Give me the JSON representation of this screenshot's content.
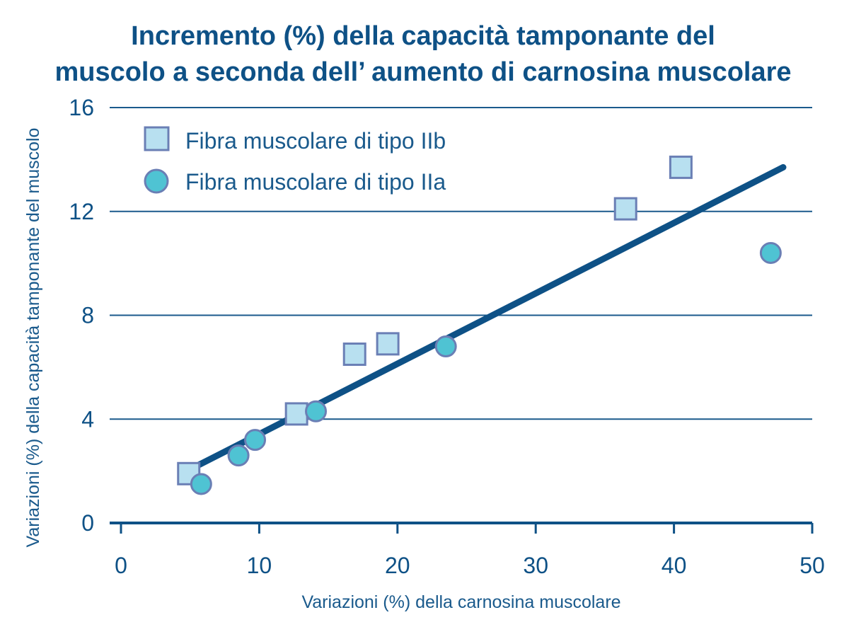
{
  "chart_data": {
    "type": "scatter",
    "title_line1": "Incremento (%) della capacità tamponante del",
    "title_line2": "muscolo a seconda dell’ aumento di carnosina muscolare",
    "xlabel": "Variazioni (%) della carnosina muscolare",
    "ylabel": "Variazioni (%) della capacità tamponante del muscolo",
    "xlim": [
      0,
      50
    ],
    "ylim": [
      0,
      16
    ],
    "x_ticks": [
      0,
      10,
      20,
      30,
      40,
      50
    ],
    "y_ticks": [
      0,
      4,
      8,
      12,
      16
    ],
    "grid": "horizontal",
    "legend_position": "top-left",
    "series": [
      {
        "name": "Fibra muscolare di tipo IIb",
        "marker": "square",
        "fill": "#b8e0f0",
        "stroke": "#6a7fb5",
        "points": [
          {
            "x": 4.9,
            "y": 1.9
          },
          {
            "x": 12.7,
            "y": 4.2
          },
          {
            "x": 16.9,
            "y": 6.5
          },
          {
            "x": 19.3,
            "y": 6.9
          },
          {
            "x": 36.5,
            "y": 12.1
          },
          {
            "x": 40.5,
            "y": 13.7
          }
        ]
      },
      {
        "name": "Fibra muscolare di tipo IIa",
        "marker": "circle",
        "fill": "#4fc3d3",
        "stroke": "#6a7fb5",
        "points": [
          {
            "x": 5.8,
            "y": 1.5
          },
          {
            "x": 8.5,
            "y": 2.6
          },
          {
            "x": 9.7,
            "y": 3.2
          },
          {
            "x": 14.1,
            "y": 4.3
          },
          {
            "x": 23.5,
            "y": 6.8
          },
          {
            "x": 47.0,
            "y": 10.4
          }
        ]
      }
    ],
    "trendline": {
      "color": "#0e5186",
      "points": [
        {
          "x": 5.5,
          "y": 2.2
        },
        {
          "x": 47.9,
          "y": 13.7
        }
      ]
    },
    "colors": {
      "title": "#0e5186",
      "axis": "#0e5186",
      "grid": "#1a5a8c",
      "text": "#1a5a8c"
    }
  }
}
